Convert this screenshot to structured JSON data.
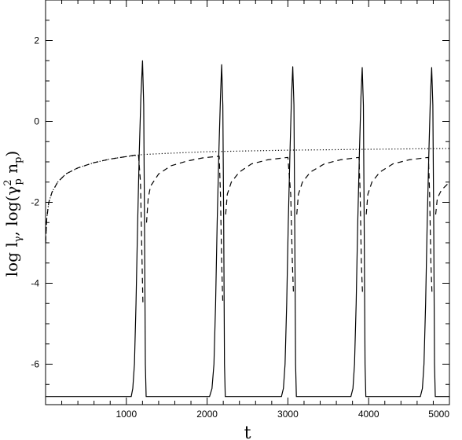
{
  "chart_data": {
    "type": "line",
    "xlabel": "t",
    "ylabel": "log lγ, log(γp² np)",
    "ylabel_parts": {
      "prefix": "log l",
      "sub1": "γ",
      "mid": ", log(γ",
      "sup": "2",
      "sub2": "p",
      "tail": " n",
      "sub3": "p",
      "close": ")"
    },
    "xlim": [
      0,
      5000
    ],
    "ylim": [
      -7,
      3
    ],
    "x_ticks": [
      1000,
      2000,
      3000,
      4000,
      5000
    ],
    "x_tick_labels": [
      "1000",
      "2000",
      "3000",
      "4000",
      "5000"
    ],
    "y_ticks": [
      -6,
      -4,
      -2,
      0,
      2
    ],
    "y_tick_labels": [
      "-6",
      "-4",
      "-2",
      "0",
      "2"
    ],
    "grid": false,
    "legend": "none",
    "series": [
      {
        "style": "solid",
        "points": [
          [
            0,
            -6.8
          ],
          [
            1060,
            -6.8
          ],
          [
            1080,
            -6.6
          ],
          [
            1100,
            -6.0
          ],
          [
            1120,
            -4.5
          ],
          [
            1140,
            -2.5
          ],
          [
            1160,
            -0.8
          ],
          [
            1180,
            0.6
          ],
          [
            1200,
            1.5
          ],
          [
            1215,
            0.4
          ],
          [
            1225,
            -2.5
          ],
          [
            1235,
            -6.0
          ],
          [
            1245,
            -6.8
          ],
          [
            2030,
            -6.8
          ],
          [
            2060,
            -6.6
          ],
          [
            2085,
            -6.0
          ],
          [
            2105,
            -4.5
          ],
          [
            2125,
            -2.5
          ],
          [
            2145,
            -0.8
          ],
          [
            2165,
            0.6
          ],
          [
            2180,
            1.4
          ],
          [
            2195,
            0.4
          ],
          [
            2205,
            -2.5
          ],
          [
            2215,
            -6.0
          ],
          [
            2225,
            -6.8
          ],
          [
            2920,
            -6.8
          ],
          [
            2945,
            -6.6
          ],
          [
            2965,
            -6.0
          ],
          [
            2985,
            -4.5
          ],
          [
            3005,
            -2.5
          ],
          [
            3025,
            -0.8
          ],
          [
            3045,
            0.6
          ],
          [
            3060,
            1.35
          ],
          [
            3075,
            0.4
          ],
          [
            3085,
            -2.5
          ],
          [
            3095,
            -6.0
          ],
          [
            3105,
            -6.8
          ],
          [
            3780,
            -6.8
          ],
          [
            3805,
            -6.6
          ],
          [
            3825,
            -6.0
          ],
          [
            3845,
            -4.5
          ],
          [
            3865,
            -2.5
          ],
          [
            3885,
            -0.8
          ],
          [
            3905,
            0.6
          ],
          [
            3920,
            1.33
          ],
          [
            3935,
            0.4
          ],
          [
            3945,
            -2.5
          ],
          [
            3955,
            -6.0
          ],
          [
            3965,
            -6.8
          ],
          [
            4640,
            -6.8
          ],
          [
            4665,
            -6.6
          ],
          [
            4685,
            -6.0
          ],
          [
            4705,
            -4.5
          ],
          [
            4725,
            -2.5
          ],
          [
            4745,
            -0.8
          ],
          [
            4765,
            0.6
          ],
          [
            4780,
            1.33
          ],
          [
            4795,
            0.4
          ],
          [
            4805,
            -2.5
          ],
          [
            4815,
            -6.0
          ],
          [
            4825,
            -6.8
          ],
          [
            5000,
            -6.8
          ]
        ]
      },
      {
        "style": "dashed",
        "segments": [
          [
            [
              1,
              -3.0
            ],
            [
              15,
              -2.4
            ],
            [
              40,
              -2.0
            ],
            [
              80,
              -1.75
            ],
            [
              150,
              -1.5
            ],
            [
              250,
              -1.3
            ],
            [
              400,
              -1.15
            ],
            [
              600,
              -1.02
            ],
            [
              800,
              -0.93
            ],
            [
              1000,
              -0.87
            ],
            [
              1150,
              -0.82
            ],
            [
              1175,
              -1.5
            ],
            [
              1190,
              -3.0
            ],
            [
              1205,
              -4.5
            ]
          ],
          [
            [
              1250,
              -2.5
            ],
            [
              1270,
              -1.9
            ],
            [
              1300,
              -1.6
            ],
            [
              1400,
              -1.3
            ],
            [
              1550,
              -1.1
            ],
            [
              1750,
              -0.98
            ],
            [
              1950,
              -0.9
            ],
            [
              2150,
              -0.86
            ],
            [
              2165,
              -1.8
            ],
            [
              2180,
              -3.5
            ],
            [
              2195,
              -4.5
            ]
          ],
          [
            [
              2230,
              -2.3
            ],
            [
              2250,
              -1.8
            ],
            [
              2300,
              -1.5
            ],
            [
              2400,
              -1.25
            ],
            [
              2550,
              -1.05
            ],
            [
              2750,
              -0.95
            ],
            [
              3000,
              -0.89
            ],
            [
              3035,
              -1.8
            ],
            [
              3055,
              -3.5
            ],
            [
              3070,
              -4.3
            ]
          ],
          [
            [
              3110,
              -2.3
            ],
            [
              3130,
              -1.8
            ],
            [
              3180,
              -1.5
            ],
            [
              3280,
              -1.25
            ],
            [
              3450,
              -1.05
            ],
            [
              3650,
              -0.95
            ],
            [
              3880,
              -0.89
            ],
            [
              3895,
              -1.8
            ],
            [
              3910,
              -3.5
            ],
            [
              3925,
              -4.3
            ]
          ],
          [
            [
              3970,
              -2.3
            ],
            [
              3990,
              -1.8
            ],
            [
              4040,
              -1.5
            ],
            [
              4140,
              -1.25
            ],
            [
              4300,
              -1.05
            ],
            [
              4500,
              -0.95
            ],
            [
              4740,
              -0.89
            ],
            [
              4755,
              -1.8
            ],
            [
              4770,
              -3.5
            ],
            [
              4785,
              -4.3
            ]
          ],
          [
            [
              4830,
              -2.3
            ],
            [
              4850,
              -1.9
            ],
            [
              4900,
              -1.7
            ],
            [
              4950,
              -1.6
            ],
            [
              5000,
              -1.5
            ]
          ]
        ]
      },
      {
        "style": "dotted",
        "points": [
          [
            1,
            -3.0
          ],
          [
            15,
            -2.4
          ],
          [
            40,
            -2.0
          ],
          [
            80,
            -1.75
          ],
          [
            150,
            -1.5
          ],
          [
            250,
            -1.3
          ],
          [
            400,
            -1.15
          ],
          [
            600,
            -1.02
          ],
          [
            800,
            -0.93
          ],
          [
            1000,
            -0.87
          ],
          [
            1200,
            -0.82
          ],
          [
            1500,
            -0.79
          ],
          [
            2000,
            -0.75
          ],
          [
            2500,
            -0.73
          ],
          [
            3000,
            -0.71
          ],
          [
            3500,
            -0.7
          ],
          [
            4000,
            -0.69
          ],
          [
            4500,
            -0.68
          ],
          [
            5000,
            -0.67
          ]
        ]
      }
    ]
  }
}
